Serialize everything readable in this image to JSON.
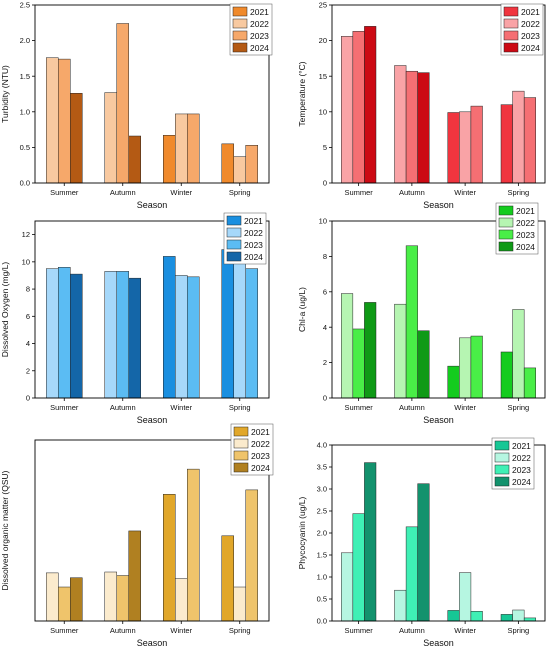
{
  "chart_data": [
    {
      "type": "bar",
      "title": "",
      "xlabel": "Season",
      "ylabel": "Turbidity (NTU)",
      "categories": [
        "Summer",
        "Autumn",
        "Winter",
        "Spring"
      ],
      "ylim": [
        0,
        2.5
      ],
      "yticks": [
        0.0,
        0.5,
        1.0,
        1.5,
        2.0,
        2.5
      ],
      "ytick_decimals": 1,
      "legend_position": "top-right",
      "grid": false,
      "series": [
        {
          "name": "2021",
          "color": "#f08a2c",
          "values": [
            null,
            null,
            0.67,
            0.55
          ]
        },
        {
          "name": "2022",
          "color": "#f8c9a0",
          "values": [
            1.76,
            1.27,
            0.97,
            0.37
          ]
        },
        {
          "name": "2023",
          "color": "#f6a86a",
          "values": [
            1.74,
            2.24,
            0.97,
            0.53
          ]
        },
        {
          "name": "2024",
          "color": "#b45a14",
          "values": [
            1.26,
            0.66,
            null,
            null
          ]
        }
      ]
    },
    {
      "type": "bar",
      "title": "",
      "xlabel": "Season",
      "ylabel": "Temperature (°C)",
      "categories": [
        "Summer",
        "Autumn",
        "Winter",
        "Spring"
      ],
      "ylim": [
        0,
        25
      ],
      "yticks": [
        0,
        5,
        10,
        15,
        20,
        25
      ],
      "ytick_decimals": 0,
      "legend_position": "top-right",
      "grid": false,
      "series": [
        {
          "name": "2021",
          "color": "#f0353f",
          "values": [
            null,
            null,
            9.9,
            11.0
          ]
        },
        {
          "name": "2022",
          "color": "#f9a3a6",
          "values": [
            20.6,
            16.5,
            10.0,
            12.9
          ]
        },
        {
          "name": "2023",
          "color": "#f56f73",
          "values": [
            21.3,
            15.7,
            10.8,
            12.0
          ]
        },
        {
          "name": "2024",
          "color": "#cc0a14",
          "values": [
            22.0,
            15.5,
            null,
            null
          ]
        }
      ]
    },
    {
      "type": "bar",
      "title": "",
      "xlabel": "Season",
      "ylabel": "Dissolved Oxygen (mg/L)",
      "categories": [
        "Summer",
        "Autumn",
        "Winter",
        "Spring"
      ],
      "ylim": [
        0,
        13
      ],
      "yticks": [
        0,
        2,
        4,
        6,
        8,
        10,
        12
      ],
      "ytick_decimals": 0,
      "legend_position": "top-right",
      "grid": false,
      "series": [
        {
          "name": "2021",
          "color": "#1a8fe0",
          "values": [
            null,
            null,
            10.4,
            10.9
          ]
        },
        {
          "name": "2022",
          "color": "#a6d8fa",
          "values": [
            9.5,
            9.3,
            9.0,
            11.9
          ]
        },
        {
          "name": "2023",
          "color": "#5bbcf3",
          "values": [
            9.6,
            9.3,
            8.9,
            9.5
          ]
        },
        {
          "name": "2024",
          "color": "#1466a8",
          "values": [
            9.1,
            8.8,
            null,
            null
          ]
        }
      ]
    },
    {
      "type": "bar",
      "title": "",
      "xlabel": "Season",
      "ylabel": "Chl-a (ug/L)",
      "categories": [
        "Summer",
        "Autumn",
        "Winter",
        "Spring"
      ],
      "ylim": [
        0,
        10
      ],
      "yticks": [
        0,
        2,
        4,
        6,
        8,
        10
      ],
      "ytick_decimals": 0,
      "legend_position": "top-right",
      "grid": false,
      "series": [
        {
          "name": "2021",
          "color": "#14cc1e",
          "values": [
            null,
            null,
            1.8,
            2.6
          ]
        },
        {
          "name": "2022",
          "color": "#b6f5b2",
          "values": [
            5.9,
            5.3,
            3.4,
            5.0
          ]
        },
        {
          "name": "2023",
          "color": "#49ee47",
          "values": [
            3.9,
            8.6,
            3.5,
            1.7
          ]
        },
        {
          "name": "2024",
          "color": "#0f9a16",
          "values": [
            5.4,
            3.8,
            null,
            null
          ]
        }
      ]
    },
    {
      "type": "bar",
      "title": "",
      "xlabel": "Season",
      "ylabel": "Dissolved organic matter (QSU)",
      "categories": [
        "Summer",
        "Autumn",
        "Winter",
        "Spring"
      ],
      "ylim": [
        0,
        4.1
      ],
      "yticks": [],
      "ytick_decimals": 0,
      "legend_position": "top-right",
      "grid": false,
      "series": [
        {
          "name": "2021",
          "color": "#e1a72a",
          "values": [
            null,
            null,
            2.87,
            1.93
          ]
        },
        {
          "name": "2022",
          "color": "#fbebcd",
          "values": [
            1.09,
            1.11,
            0.96,
            0.77
          ]
        },
        {
          "name": "2023",
          "color": "#efc46b",
          "values": [
            0.77,
            1.03,
            3.44,
            2.97
          ]
        },
        {
          "name": "2024",
          "color": "#b08021",
          "values": [
            0.98,
            2.04,
            null,
            null
          ]
        }
      ]
    },
    {
      "type": "bar",
      "title": "",
      "xlabel": "Season",
      "ylabel": "Phycocyanin (ug/L)",
      "categories": [
        "Summer",
        "Autumn",
        "Winter",
        "Spring"
      ],
      "ylim": [
        0,
        4.0
      ],
      "yticks": [
        0.0,
        0.5,
        1.0,
        1.5,
        2.0,
        2.5,
        3.0,
        3.5,
        4.0
      ],
      "ytick_decimals": 1,
      "legend_position": "top-right",
      "grid": false,
      "series": [
        {
          "name": "2021",
          "color": "#17c795",
          "values": [
            null,
            null,
            0.24,
            0.15
          ]
        },
        {
          "name": "2022",
          "color": "#b6f6e1",
          "values": [
            1.55,
            0.7,
            1.1,
            0.25
          ]
        },
        {
          "name": "2023",
          "color": "#3ff0b5",
          "values": [
            2.44,
            2.14,
            0.22,
            0.07
          ]
        },
        {
          "name": "2024",
          "color": "#13926d",
          "values": [
            3.6,
            3.12,
            null,
            null
          ]
        }
      ]
    }
  ]
}
